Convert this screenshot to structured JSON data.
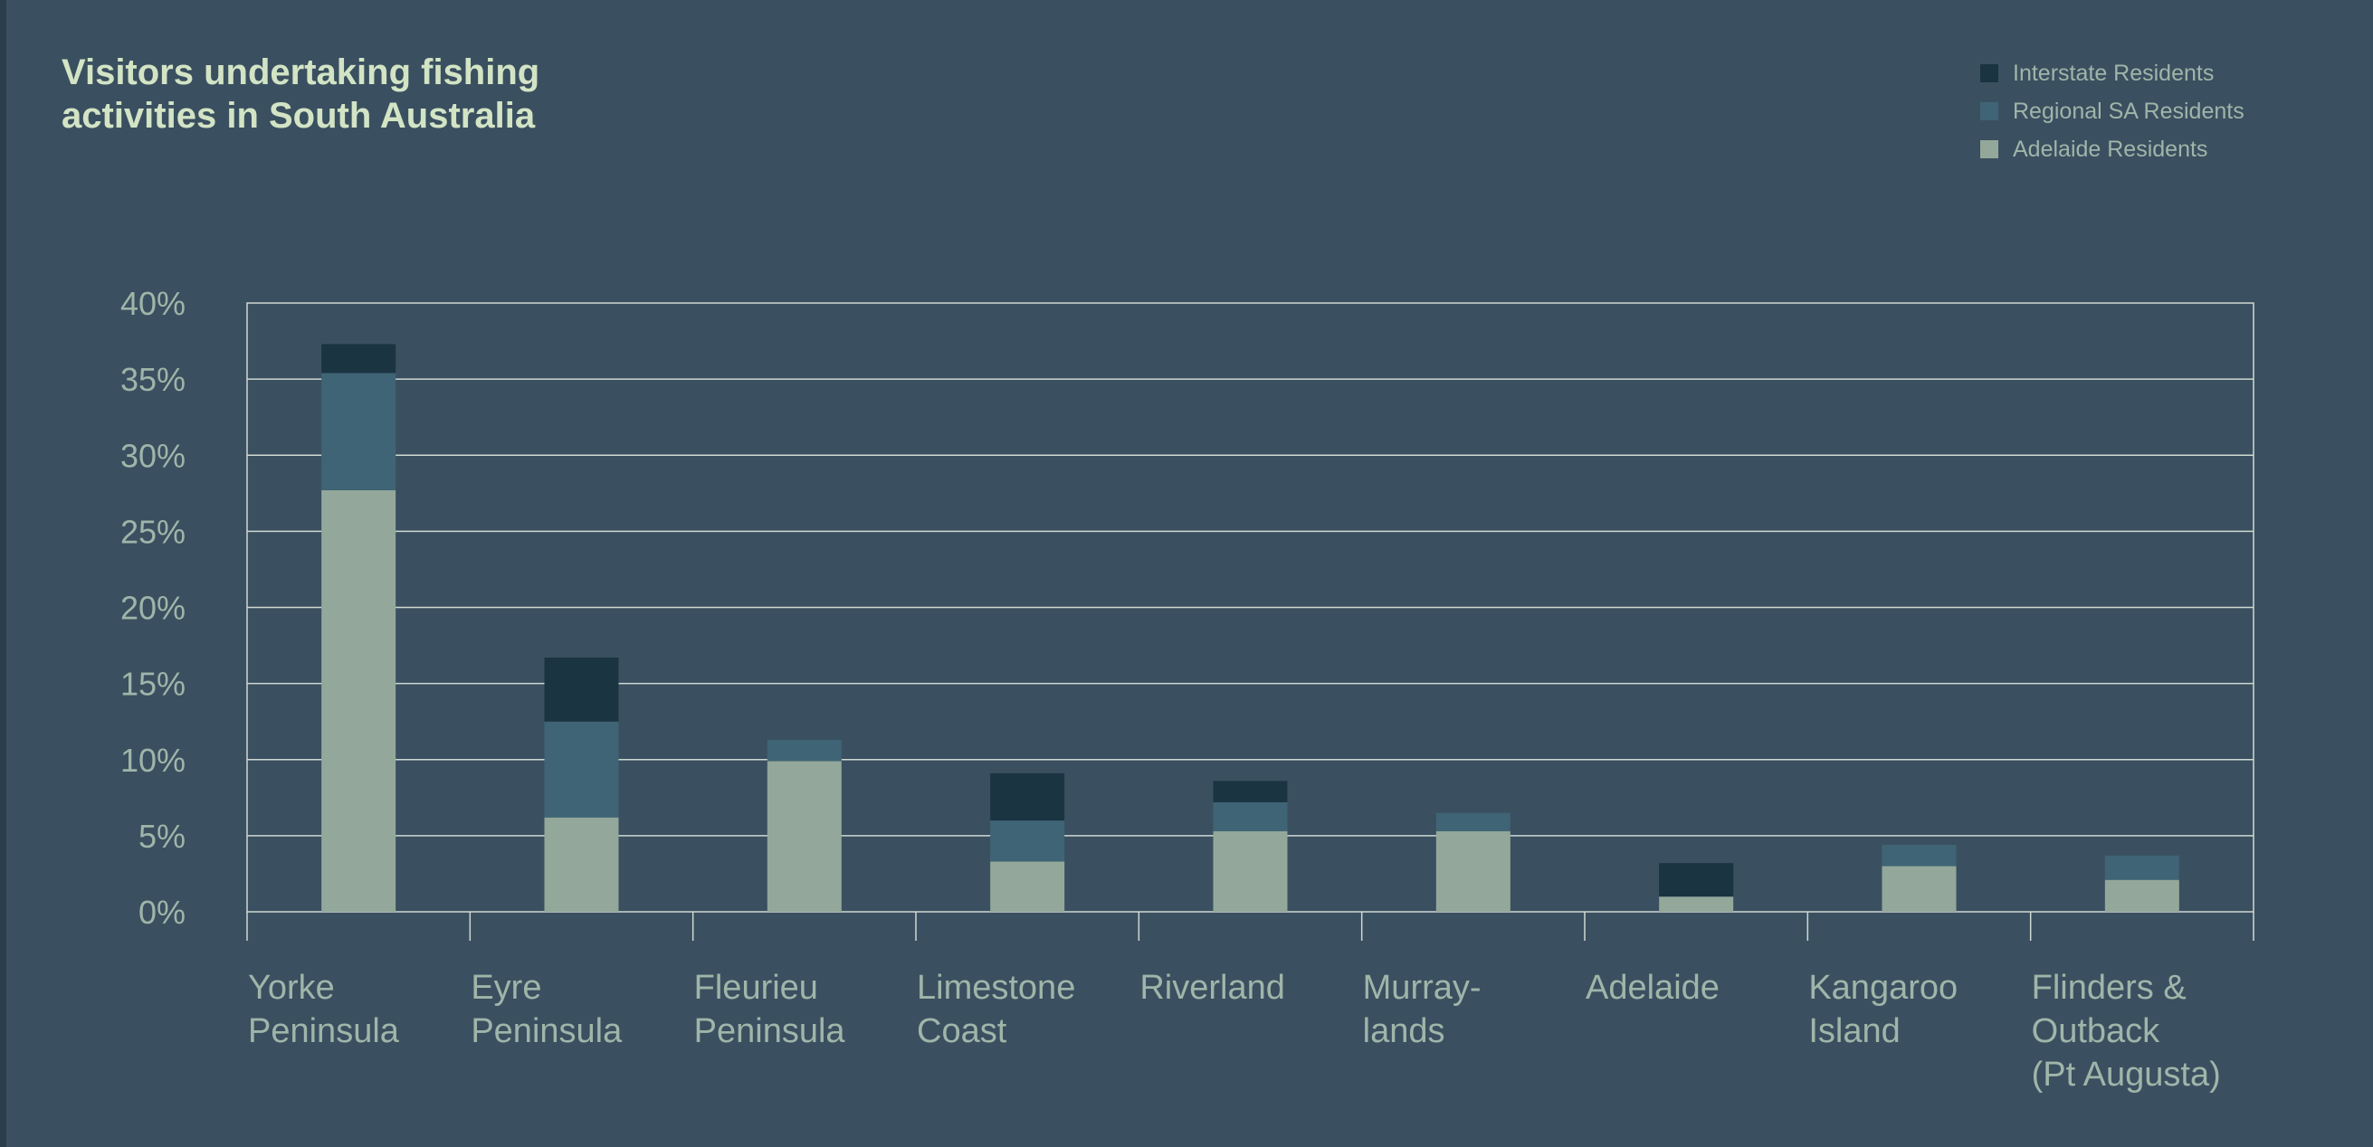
{
  "chart_data": {
    "type": "bar",
    "stacked": true,
    "title_lines": [
      "Visitors undertaking fishing",
      "activities in South Australia"
    ],
    "xlabel": "",
    "ylabel": "",
    "ylim": [
      0,
      40
    ],
    "yticks": [
      "0%",
      "5%",
      "10%",
      "15%",
      "20%",
      "25%",
      "30%",
      "35%",
      "40%"
    ],
    "grid": true,
    "legend_position": "top-right",
    "categories": [
      [
        "Yorke",
        "Peninsula"
      ],
      [
        "Eyre",
        "Peninsula"
      ],
      [
        "Fleurieu",
        "Peninsula"
      ],
      [
        "Limestone",
        "Coast"
      ],
      [
        "Riverland"
      ],
      [
        "Murray-",
        "lands"
      ],
      [
        "Adelaide"
      ],
      [
        "Kangaroo",
        "Island"
      ],
      [
        "Flinders &",
        "Outback",
        "(Pt Augusta)"
      ]
    ],
    "series": [
      {
        "name": "Adelaide Residents",
        "color": "#93a89a",
        "values": [
          27.7,
          6.2,
          9.9,
          3.3,
          5.3,
          5.3,
          1.0,
          3.0,
          2.1
        ]
      },
      {
        "name": "Regional SA Residents",
        "color": "#3f6475",
        "values": [
          7.7,
          6.3,
          1.4,
          2.7,
          1.9,
          1.2,
          0.0,
          1.4,
          1.6
        ]
      },
      {
        "name": "Interstate Residents",
        "color": "#1b3442",
        "values": [
          1.9,
          4.2,
          0.0,
          3.1,
          1.4,
          0.0,
          2.2,
          0.0,
          0.0
        ]
      }
    ],
    "legend_order": [
      "Interstate Residents",
      "Regional SA Residents",
      "Adelaide Residents"
    ]
  }
}
